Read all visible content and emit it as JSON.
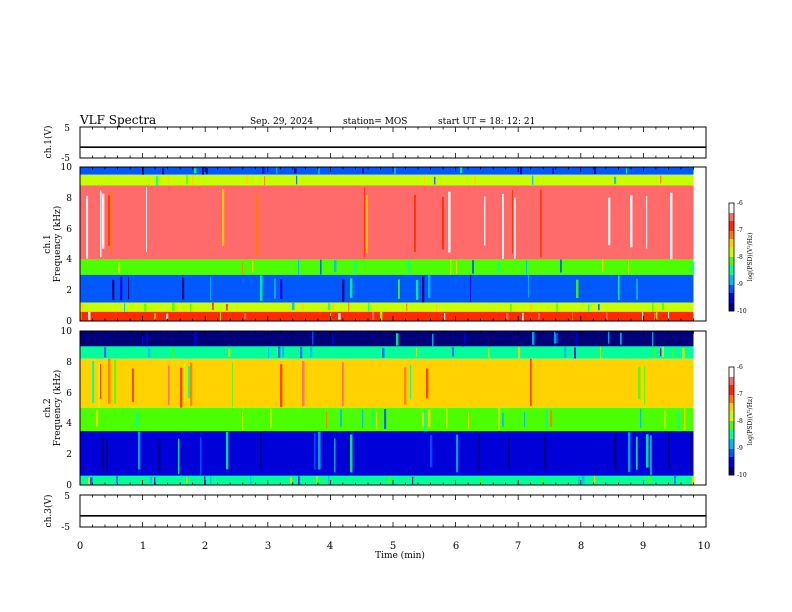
{
  "header": {
    "title": "VLF Spectra",
    "date": "Sep. 29, 2024",
    "station": "station= MOS",
    "start": "start  UT =   18: 12: 21"
  },
  "chart_data": [
    {
      "type": "line",
      "panel": "ch1-voltage",
      "ylabel": "ch.1(V)",
      "ylim": [
        -5,
        5
      ],
      "yticks": [
        "5",
        "-5"
      ],
      "x": [
        0,
        10
      ],
      "values": [
        -1.5,
        -1.5
      ]
    },
    {
      "type": "heatmap",
      "panel": "ch1-spectrogram",
      "ylabel": [
        "ch.1",
        "Frequency (kHz)"
      ],
      "ylim": [
        0,
        10
      ],
      "yticks": [
        "0",
        "2",
        "4",
        "6",
        "8",
        "10"
      ],
      "colorbar": {
        "label": "log(PSD)(V²/Hz)",
        "range": [
          -10,
          -6
        ],
        "ticks": [
          "-6",
          "-7",
          "-8",
          "-9",
          "-10"
        ]
      },
      "band_levels": [
        {
          "f": [
            9.5,
            10
          ],
          "level": -9.2
        },
        {
          "f": [
            8.8,
            9.5
          ],
          "level": -8.0
        },
        {
          "f": [
            4.0,
            8.8
          ],
          "level": -6.6
        },
        {
          "f": [
            3.0,
            4.0
          ],
          "level": -8.3
        },
        {
          "f": [
            1.2,
            3.0
          ],
          "level": -9.3
        },
        {
          "f": [
            0.6,
            1.2
          ],
          "level": -8.0
        },
        {
          "f": [
            0,
            0.6
          ],
          "level": -6.8
        }
      ]
    },
    {
      "type": "heatmap",
      "panel": "ch2-spectrogram",
      "ylabel": [
        "ch.2",
        "Frequency (kHz)"
      ],
      "ylim": [
        0,
        10
      ],
      "yticks": [
        "0",
        "2",
        "4",
        "6",
        "8",
        "10"
      ],
      "colorbar": {
        "label": "log(PSD)(V²/Hz)",
        "range": [
          -10,
          -6
        ],
        "ticks": [
          "-6",
          "-7",
          "-8",
          "-9",
          "-10"
        ]
      },
      "band_levels": [
        {
          "f": [
            9.0,
            10
          ],
          "level": -9.7
        },
        {
          "f": [
            8.2,
            9.0
          ],
          "level": -8.4
        },
        {
          "f": [
            5.0,
            8.2
          ],
          "level": -7.4
        },
        {
          "f": [
            3.5,
            5.0
          ],
          "level": -8.2
        },
        {
          "f": [
            0.6,
            3.5
          ],
          "level": -9.6
        },
        {
          "f": [
            0,
            0.6
          ],
          "level": -8.6
        }
      ]
    },
    {
      "type": "line",
      "panel": "ch3-voltage",
      "ylabel": "ch.3(V)",
      "ylim": [
        -5,
        5
      ],
      "yticks": [
        "5",
        "-5"
      ],
      "x": [
        0,
        10
      ],
      "values": [
        -1.5,
        -1.5
      ]
    }
  ],
  "x_axis": {
    "label": "Time  (min)",
    "range": [
      0,
      10
    ],
    "ticks": [
      "0",
      "1",
      "2",
      "3",
      "4",
      "5",
      "6",
      "7",
      "8",
      "9",
      "10"
    ]
  },
  "colors": {
    "colormap": [
      "#00007a",
      "#0000d8",
      "#0058ff",
      "#00b8ff",
      "#00ff9a",
      "#4cff00",
      "#c8ff00",
      "#ffd200",
      "#ff7a00",
      "#ff2a00",
      "#ff6a6a",
      "#ffffff"
    ]
  }
}
